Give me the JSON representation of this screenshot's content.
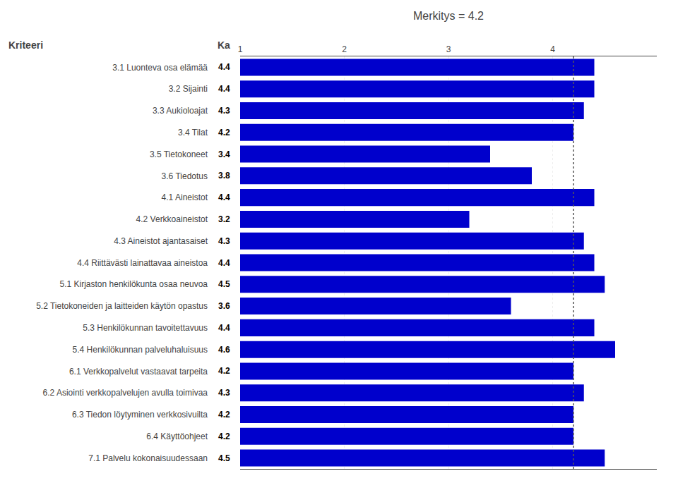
{
  "chart_data": {
    "type": "bar",
    "orientation": "horizontal",
    "title": "Merkitys = 4.2",
    "ylabel": "Kriteeri",
    "annotations": [
      {
        "text": "Ka"
      }
    ],
    "categories": [
      "3.1 Luonteva osa elämää",
      "3.2 Sijainti",
      "3.3 Aukioloajat",
      "3.4 Tilat",
      "3.5 Tietokoneet",
      "3.6 Tiedotus",
      "4.1 Aineistot",
      "4.2 Verkkoaineistot",
      "4.3 Aineistot ajantasaiset",
      "4.4 Riittävästi lainattavaa aineistoa",
      "5.1 Kirjaston henkilökunta osaa neuvoa",
      "5.2 Tietokoneiden ja laitteiden käytön opastus",
      "5.3 Henkilökunnan tavoitettavuus",
      "5.4 Henkilökunnan palveluhaluisuus",
      "6.1 Verkkopalvelut vastaavat tarpeita",
      "6.2 Asiointi verkkopalvelujen avulla toimivaa",
      "6.3 Tiedon löytyminen verkkosivuilta",
      "6.4 Käyttöohjeet",
      "7.1 Palvelu kokonaisuudessaan"
    ],
    "values": [
      4.4,
      4.4,
      4.3,
      4.2,
      3.4,
      3.8,
      4.4,
      3.2,
      4.3,
      4.4,
      4.5,
      3.6,
      4.4,
      4.6,
      4.2,
      4.3,
      4.2,
      4.2,
      4.5
    ],
    "reference_line": 4.2,
    "color": "#0000CC",
    "xlim": [
      1,
      5
    ],
    "xticks": [
      1,
      2,
      3,
      4
    ],
    "grid": true,
    "data_labels": true
  }
}
